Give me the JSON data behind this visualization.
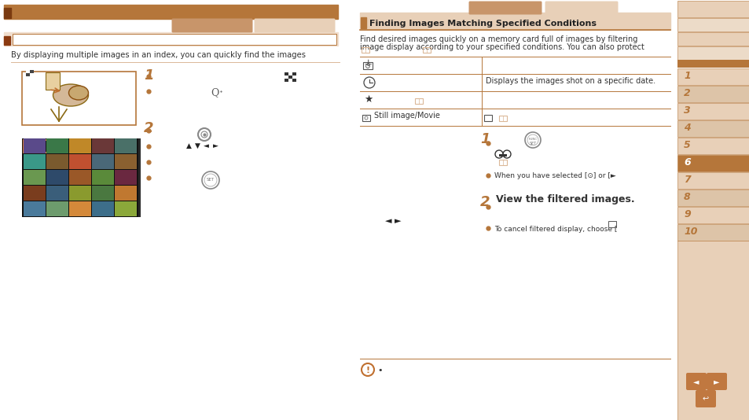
{
  "bg_color": "#ffffff",
  "brown_dark": "#b5763a",
  "brown_medium": "#c8956a",
  "brown_light": "#dbb898",
  "brown_vlight": "#e8d0b8",
  "brown_pale": "#f0dece",
  "brown_header": "#c07840",
  "sidebar_active": "#b5763a",
  "sidebar_light1": "#e8d0b8",
  "sidebar_light2": "#ddc4a8",
  "nav_btn": "#c07840",
  "text_dark": "#333333",
  "text_brown": "#b5763a",
  "title_text": "Finding Images Matching Specified Conditions",
  "body_left": "By displaying multiple images in an index, you can quickly find the images",
  "body_right1": "Find desired images quickly on a memory card full of images by filtering",
  "body_right2": "image display according to your specified conditions. You can also protect",
  "date_text": "Displays the images shot on a specific date.",
  "still_text": "Still image/Movie",
  "when_text": "When you have selected [⊙] or [►",
  "step2_text": "View the filtered images.",
  "cancel_text": "To cancel filtered display, choose [",
  "sidebar_nums": [
    "1",
    "2",
    "3",
    "4",
    "5",
    "6",
    "7",
    "8",
    "9",
    "10"
  ],
  "active_tab": 5,
  "grid_colors": [
    "#4a7a9b",
    "#6d9b6d",
    "#d4893a",
    "#3d6e8a",
    "#8ba83a",
    "#7a3d1e",
    "#3a5e7a",
    "#8a9a2e",
    "#4a7840",
    "#c07830",
    "#6a9850",
    "#2e4a6a",
    "#9a5828",
    "#5a8a3a",
    "#6a2840",
    "#3a9888",
    "#7a5a2e",
    "#c05030",
    "#4a6878",
    "#8a6030",
    "#5a4a8a",
    "#3a7848",
    "#c08828",
    "#6a3838",
    "#4a7068"
  ]
}
